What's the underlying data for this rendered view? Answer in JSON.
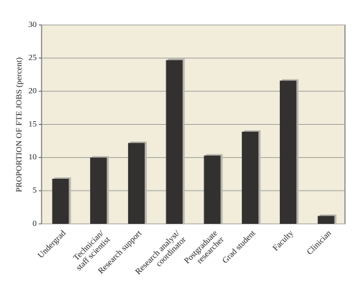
{
  "chart_data": {
    "type": "bar",
    "y_label": "PROPORTION OF FTE JOBS (percent)",
    "categories": [
      [
        "Undergrad"
      ],
      [
        "Technician/",
        "staff scientist"
      ],
      [
        "Research support"
      ],
      [
        "Research analyst/",
        "coordinator"
      ],
      [
        "Postgraduate",
        "researcher"
      ],
      [
        "Grad student"
      ],
      [
        "Faculty"
      ],
      [
        "Clinician"
      ]
    ],
    "values": [
      6.8,
      10.0,
      12.2,
      24.7,
      10.3,
      13.9,
      21.6,
      1.2
    ],
    "color": "#333030",
    "ylim": [
      0,
      30
    ],
    "yticks": [
      0,
      5,
      10,
      15,
      20,
      25,
      30
    ],
    "grid": true
  }
}
